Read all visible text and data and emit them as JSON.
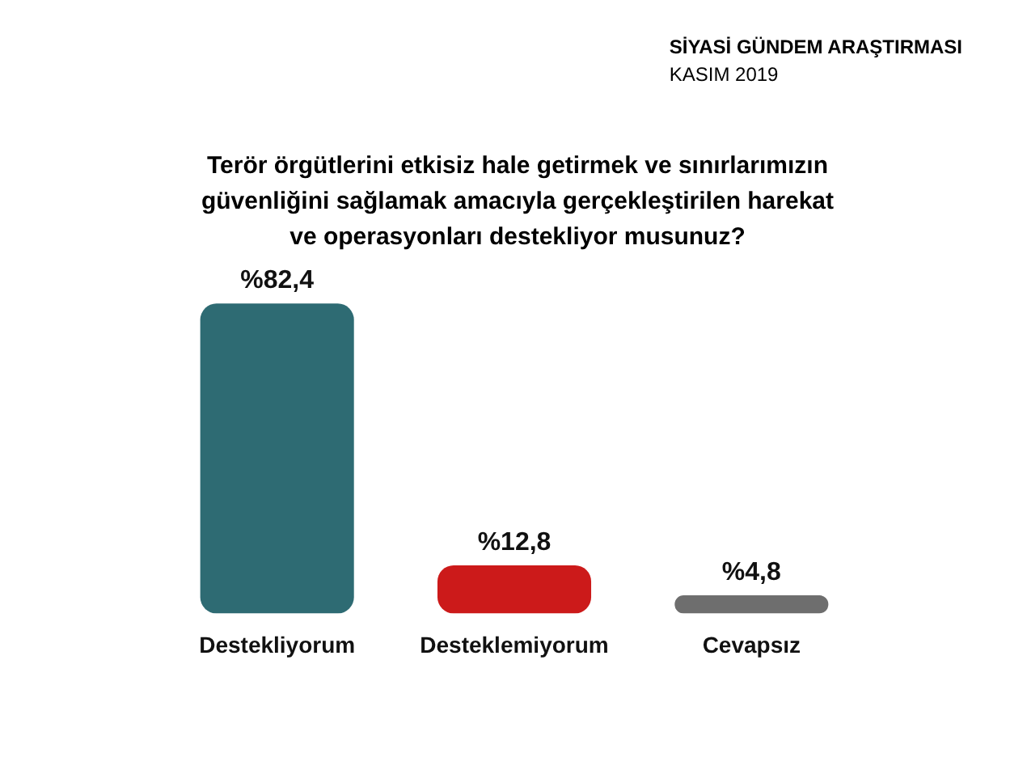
{
  "chart_data": {
    "type": "bar",
    "title": "Terör örgütlerini etkisiz hale getirmek ve sınırlarımızın güvenliğini sağlamak amacıyla gerçekleştirilen harekat ve operasyonları destekliyor musunuz?",
    "subtitle": "SİYASİ GÜNDEM ARAŞTIRMASI",
    "annotations": [
      "KASIM 2019"
    ],
    "categories": [
      "Destekliyorum",
      "Desteklemiyorum",
      "Cevapsız"
    ],
    "values": [
      82.4,
      12.8,
      4.8
    ],
    "value_labels": [
      "%82,4",
      "%12,8",
      "%4,8"
    ],
    "colors": [
      "#2e6b73",
      "#cc1a1a",
      "#6e6e6e"
    ],
    "grid": false,
    "legend": false
  }
}
